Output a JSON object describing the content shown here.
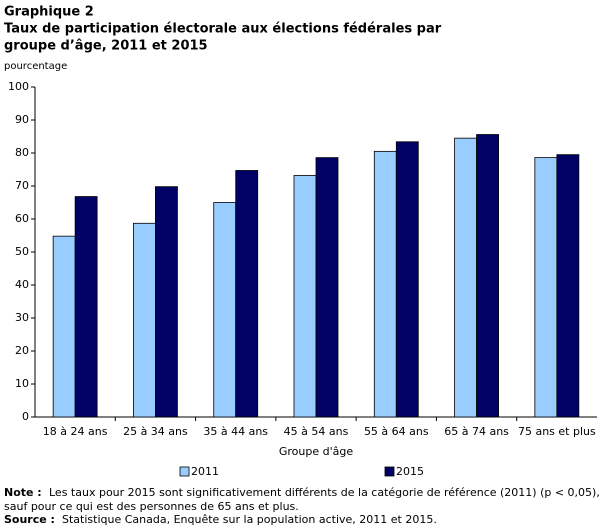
{
  "chart_data": {
    "type": "bar",
    "title_lines": [
      "Graphique 2",
      "Taux de participation électorale aux élections fédérales par",
      "groupe d’âge, 2011 et 2015"
    ],
    "y_label": "pourcentage",
    "x_label": "Groupe d'âge",
    "categories": [
      "18 à 24 ans",
      "25 à 34 ans",
      "35 à 44 ans",
      "45 à 54 ans",
      "55 à 64 ans",
      "65 à 74 ans",
      "75 ans et plus"
    ],
    "series": [
      {
        "name": "2011",
        "color": "#99ccff",
        "values": [
          54.8,
          58.7,
          65.0,
          73.2,
          80.5,
          84.5,
          78.6
        ]
      },
      {
        "name": "2015",
        "color": "#000066",
        "values": [
          66.8,
          69.8,
          74.7,
          78.6,
          83.4,
          85.6,
          79.5
        ]
      }
    ],
    "ylim": [
      0,
      100
    ],
    "yticks": [
      0,
      10,
      20,
      30,
      40,
      50,
      60,
      70,
      80,
      90,
      100
    ],
    "grid": false
  },
  "note": {
    "label": "Note :",
    "lines": [
      "Les taux pour 2015 sont significativement différents de la catégorie de référence (2011) (p < 0,05),",
      "sauf pour ce qui est des personnes de 65 ans et plus."
    ]
  },
  "source": {
    "label": "Source :",
    "text": "Statistique Canada, Enquête sur la population active, 2011 et 2015."
  }
}
